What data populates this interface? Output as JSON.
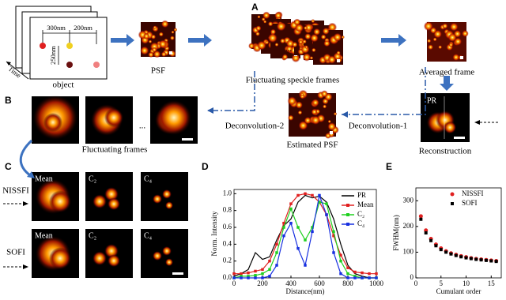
{
  "panel_labels": [
    "A",
    "B",
    "C",
    "D",
    "E"
  ],
  "diagram": {
    "time_label": "Time",
    "dimensions": [
      "300nm",
      "200nm",
      "250nm"
    ],
    "object_label": "object",
    "psf_label": "PSF",
    "ellipsis": "...",
    "speckle_label": "Fluctuating speckle frames",
    "averaged_label": "Averaged frame",
    "fluct_frames_label": "Fluctuating frames",
    "deconv2": "Deconvolution-2",
    "est_psf": "Estimated PSF",
    "deconv1": "Deconvolution-1",
    "recon": "Reconstruction",
    "pr": "PR",
    "row_labels": [
      "NISSFI",
      "SOFI"
    ],
    "image_labels": [
      "Mean",
      "C₂",
      "C₄"
    ]
  },
  "chart_data": [
    {
      "type": "line",
      "x_label": "Distance(nm)",
      "y_label": "Norm. Intensity",
      "x": [
        0,
        50,
        100,
        150,
        200,
        250,
        300,
        350,
        400,
        450,
        500,
        550,
        600,
        650,
        700,
        750,
        800,
        850,
        900,
        950,
        1000
      ],
      "series": [
        {
          "name": "PR",
          "color": "#000000",
          "values": [
            0.02,
            0.05,
            0.1,
            0.3,
            0.22,
            0.25,
            0.45,
            0.62,
            0.7,
            0.9,
            0.98,
            0.95,
            0.97,
            0.9,
            0.7,
            0.4,
            0.15,
            0.05,
            0.02,
            0,
            0
          ]
        },
        {
          "name": "Mean",
          "color": "#e02020",
          "marker": "square",
          "values": [
            0.05,
            0.05,
            0.06,
            0.08,
            0.1,
            0.2,
            0.4,
            0.65,
            0.88,
            0.98,
            1.0,
            0.98,
            0.9,
            0.75,
            0.5,
            0.27,
            0.12,
            0.07,
            0.06,
            0.05,
            0.05
          ]
        },
        {
          "name": "C₂",
          "color": "#20d020",
          "marker": "square",
          "values": [
            0,
            0.02,
            0.02,
            0.03,
            0.05,
            0.1,
            0.3,
            0.6,
            0.82,
            0.6,
            0.45,
            0.6,
            0.9,
            0.88,
            0.55,
            0.2,
            0.05,
            0.02,
            0,
            0,
            0
          ]
        },
        {
          "name": "C₄",
          "color": "#1830e0",
          "marker": "square",
          "values": [
            0,
            0,
            0,
            0,
            0,
            0.02,
            0.15,
            0.5,
            0.65,
            0.35,
            0.15,
            0.55,
            0.98,
            0.75,
            0.3,
            0.05,
            0,
            0,
            0,
            0,
            0
          ]
        }
      ],
      "xlim": [
        0,
        1000
      ],
      "xticks": [
        0,
        200,
        400,
        600,
        800,
        1000
      ],
      "ylim": [
        0,
        1.05
      ],
      "yticks": [
        {
          "value": 0,
          "label": "0.0"
        },
        0.2,
        0.4,
        0.6,
        0.8,
        {
          "value": 1,
          "label": "1.0"
        }
      ],
      "legend": "upper right"
    },
    {
      "type": "scatter",
      "x_label": "Cumulant order",
      "y_label": "FWHM(nm)",
      "x": [
        1,
        2,
        3,
        4,
        5,
        6,
        7,
        8,
        9,
        10,
        11,
        12,
        13,
        14,
        15,
        16
      ],
      "series": [
        {
          "name": "NISSFI",
          "color": "#e02020",
          "marker": "circle",
          "values": [
            240,
            185,
            152,
            130,
            115,
            104,
            96,
            90,
            85,
            81,
            77,
            74,
            72,
            70,
            68,
            66
          ]
        },
        {
          "name": "SOFI",
          "color": "#000000",
          "marker": "square",
          "values": [
            228,
            175,
            145,
            125,
            110,
            100,
            93,
            87,
            82,
            78,
            75,
            72,
            70,
            68,
            66,
            64
          ]
        }
      ],
      "xlim": [
        0,
        17
      ],
      "xticks": [
        0,
        5,
        10,
        15
      ],
      "ylim": [
        0,
        350
      ],
      "yticks": [
        0,
        100,
        200,
        300
      ],
      "legend": "upper right"
    }
  ]
}
